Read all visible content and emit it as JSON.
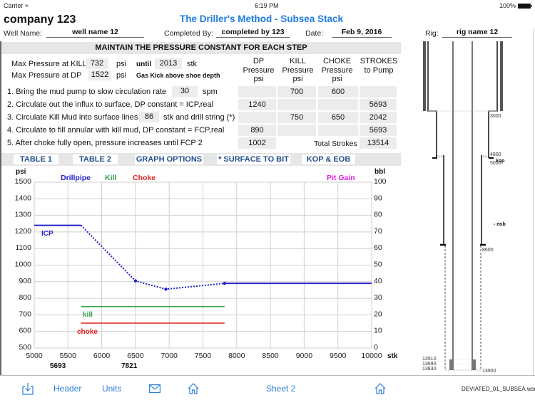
{
  "status_bar": {
    "carrier": "Carrier",
    "wifi_icon": "wifi-icon",
    "time": "6:19 PM",
    "battery_pct": "100%"
  },
  "header": {
    "company": "company 123",
    "title": "The Driller's Method - Subsea Stack",
    "well_name_label": "Well Name:",
    "well_name": "well name 12",
    "completed_by_label": "Completed By:",
    "completed_by": "completed by 123",
    "date_label": "Date:",
    "date": "Feb 9, 2016",
    "rig_label": "Rig:",
    "rig": "rig name 12"
  },
  "banner": "MAINTAIN THE PRESSURE CONSTANT FOR EACH STEP",
  "max_pressure": {
    "kill_label": "Max Pressure at KILL",
    "kill_value": "732",
    "kill_unit": "psi",
    "until_label": "until",
    "until_value": "2013",
    "until_unit": "stk",
    "dp_label": "Max Pressure at DP",
    "dp_value": "1522",
    "dp_unit": "psi",
    "note": "Gas Kick above shoe depth"
  },
  "columns": [
    {
      "l1": "DP",
      "l2": "Pressure",
      "l3": "psi"
    },
    {
      "l1": "KILL",
      "l2": "Pressure",
      "l3": "psi"
    },
    {
      "l1": "CHOKE",
      "l2": "Pressure",
      "l3": "psi"
    },
    {
      "l1": "STROKES",
      "l2": "to Pump",
      "l3": ""
    }
  ],
  "steps": [
    {
      "text": "1. Bring the mud pump to slow circulation rate",
      "input": "30",
      "unit": "spm",
      "dp": "",
      "kill": "700",
      "choke": "600",
      "strokes": ""
    },
    {
      "text": "2. Circulate out the influx to surface, DP constant = ICP,real",
      "dp": "1240",
      "kill": "",
      "choke": "",
      "strokes": "5693"
    },
    {
      "text": "3. Circulate Kill Mud into surface lines",
      "input": "86",
      "unit": "stk and drill string (*)",
      "dp": "",
      "kill": "750",
      "choke": "650",
      "strokes": "2042"
    },
    {
      "text": "4. Circulate to fill annular with kill mud, DP constant = FCP,real",
      "dp": "890",
      "kill": "",
      "choke": "",
      "strokes": "5693"
    },
    {
      "text": "5. After choke fully open, pressure increases until FCP 2",
      "dp": "1002",
      "total_label": "Total Strokes",
      "strokes": "13514"
    }
  ],
  "tabs": [
    {
      "label": "TABLE 1"
    },
    {
      "label": "TABLE 2"
    },
    {
      "label": "GRAPH OPTIONS"
    },
    {
      "label": "* SURFACE TO BIT"
    },
    {
      "label": "KOP & EOB"
    }
  ],
  "chart": {
    "y_left_label": "psi",
    "y_right_label": "bbl",
    "x_label": "stk",
    "legend": [
      {
        "name": "Drillpipe",
        "color": "#2222cc"
      },
      {
        "name": "Kill",
        "color": "#3aa04a"
      },
      {
        "name": "Choke",
        "color": "#e02020"
      },
      {
        "name": "Pit Gain",
        "color": "#e020e0"
      }
    ],
    "y_left_ticks": [
      "1500",
      "1400",
      "1300",
      "1200",
      "1100",
      "1000",
      "900",
      "800",
      "700",
      "600",
      "500"
    ],
    "y_right_ticks": [
      "100",
      "90",
      "80",
      "70",
      "60",
      "50",
      "40",
      "30",
      "20",
      "10",
      "0"
    ],
    "x_ticks": [
      "5000",
      "5500",
      "6000",
      "6500",
      "7000",
      "7500",
      "8000",
      "8500",
      "9000",
      "9500",
      "10000"
    ],
    "x_markers": [
      "5693",
      "7821"
    ],
    "annotations": {
      "icp": "ICP",
      "kill": "kill",
      "choke": "choke"
    }
  },
  "chart_data": {
    "type": "line",
    "title": "",
    "xlabel": "stk",
    "ylabel": "psi",
    "y2label": "bbl",
    "xlim": [
      5000,
      10000
    ],
    "ylim": [
      500,
      1500
    ],
    "y2lim": [
      0,
      100
    ],
    "grid": true,
    "legend_position": "top",
    "series": [
      {
        "name": "Drillpipe",
        "color": "#2222cc",
        "x": [
          5000,
          5693,
          6500,
          6950,
          7821,
          10000
        ],
        "y": [
          1240,
          1240,
          905,
          855,
          890,
          890
        ]
      },
      {
        "name": "Kill",
        "color": "#3aa04a",
        "x": [
          5693,
          7821
        ],
        "y": [
          750,
          750
        ]
      },
      {
        "name": "Choke",
        "color": "#e02020",
        "x": [
          5693,
          7821
        ],
        "y": [
          650,
          650
        ]
      },
      {
        "name": "Pit Gain",
        "color": "#e020e0",
        "x": [],
        "y": []
      }
    ],
    "annotations": [
      "ICP",
      "kill",
      "choke",
      "5693",
      "7821"
    ]
  },
  "wellbore": {
    "depths": [
      "3000",
      "4800",
      "5000",
      "8600",
      "13510",
      "13690",
      "13830",
      "13900"
    ],
    "labels": {
      "kop": "kop",
      "eob": "eob"
    }
  },
  "bottom_bar": {
    "share_icon": "share-icon",
    "header": "Header",
    "units": "Units",
    "mail_icon": "mail-icon",
    "home_icon": "home-icon",
    "sheet": "Sheet 2",
    "home2_icon": "home-icon",
    "filename": "DEVIATED_01_SUBSEA.wsdf"
  }
}
